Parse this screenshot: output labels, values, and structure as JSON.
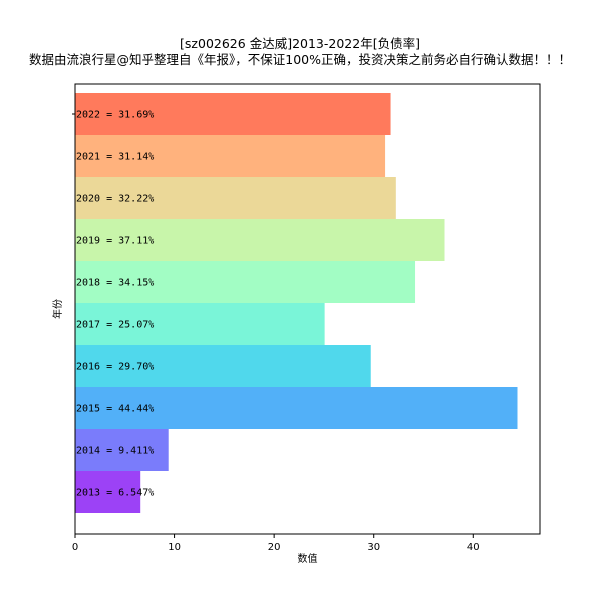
{
  "chart_data": {
    "type": "bar",
    "orientation": "horizontal",
    "title": "[sz002626 金达威]2013-2022年[负债率]",
    "subtitle": "数据由流浪行星@知乎整理自《年报》，不保证100%正确，投资决策之前务必自行确认数据！！！",
    "xlabel": "数值",
    "ylabel": "年份",
    "xlim": [
      0,
      46.7
    ],
    "xticks": [
      0,
      10,
      20,
      30,
      40
    ],
    "grid": false,
    "categories": [
      "2022",
      "2021",
      "2020",
      "2019",
      "2018",
      "2017",
      "2016",
      "2015",
      "2014",
      "2013"
    ],
    "values": [
      31.69,
      31.14,
      32.22,
      37.11,
      34.15,
      25.07,
      29.7,
      44.44,
      9.411,
      6.547
    ],
    "labels": [
      "2022 = 31.69%",
      "2021 = 31.14%",
      "2020 = 32.22%",
      "2019 = 37.11%",
      "2018 = 34.15%",
      "2017 = 25.07%",
      "2016 = 29.70%",
      "2015 = 44.44%",
      "2014 = 9.411%",
      "2013 = 6.547%"
    ],
    "colors": [
      "#ff7a5c",
      "#ffb27d",
      "#ebd898",
      "#c8f5aa",
      "#a2fdc4",
      "#7af5d8",
      "#50d8ec",
      "#52b0f8",
      "#7a7cfb",
      "#9c42f6"
    ]
  }
}
